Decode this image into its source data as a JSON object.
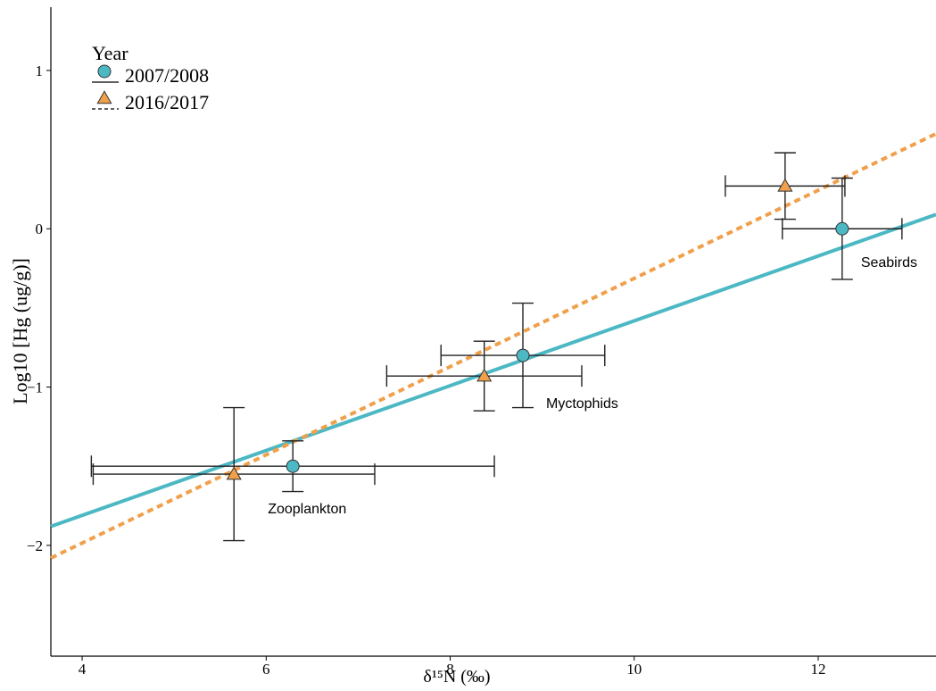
{
  "chart_data": {
    "type": "scatter",
    "xlabel": "δ¹⁵N (‰)",
    "ylabel": "Log10 [Hg (ug/g)]",
    "legend_title": "Year",
    "legend": "upper left",
    "categories": [
      "Zooplankton",
      "Myctophids",
      "Seabirds"
    ],
    "xlim": [
      3.66,
      13.28
    ],
    "ylim": [
      -2.7,
      1.4
    ],
    "xticks": [
      4,
      6,
      8,
      10,
      12
    ],
    "yticks": [
      {
        "value": -2,
        "label": "−2"
      },
      {
        "value": -1,
        "label": "−1"
      },
      0,
      1
    ],
    "series": [
      {
        "name": "2007/2008",
        "color": "#4cb8c4",
        "marker": "circle",
        "linestyle": "solid",
        "x": [
          6.29,
          8.79,
          12.26
        ],
        "y": [
          -1.5,
          -0.8,
          0
        ],
        "xerr": [
          2.19,
          0.89,
          0.65
        ],
        "yerr": [
          0.16,
          0.33,
          0.32
        ],
        "fit_x": [
          3.66,
          13.28
        ],
        "fit_y": [
          -1.88,
          0.09
        ]
      },
      {
        "name": "2016/2017",
        "color": "#f0a04b",
        "marker": "triangle",
        "linestyle": "dashed",
        "x": [
          5.65,
          8.37,
          11.64
        ],
        "y": [
          -1.55,
          -0.93,
          0.27
        ],
        "xerr": [
          1.53,
          1.06,
          0.65
        ],
        "yerr": [
          0.42,
          0.22,
          0.21
        ],
        "fit_x": [
          3.66,
          13.28
        ],
        "fit_y": [
          -2.08,
          0.6
        ]
      }
    ]
  }
}
